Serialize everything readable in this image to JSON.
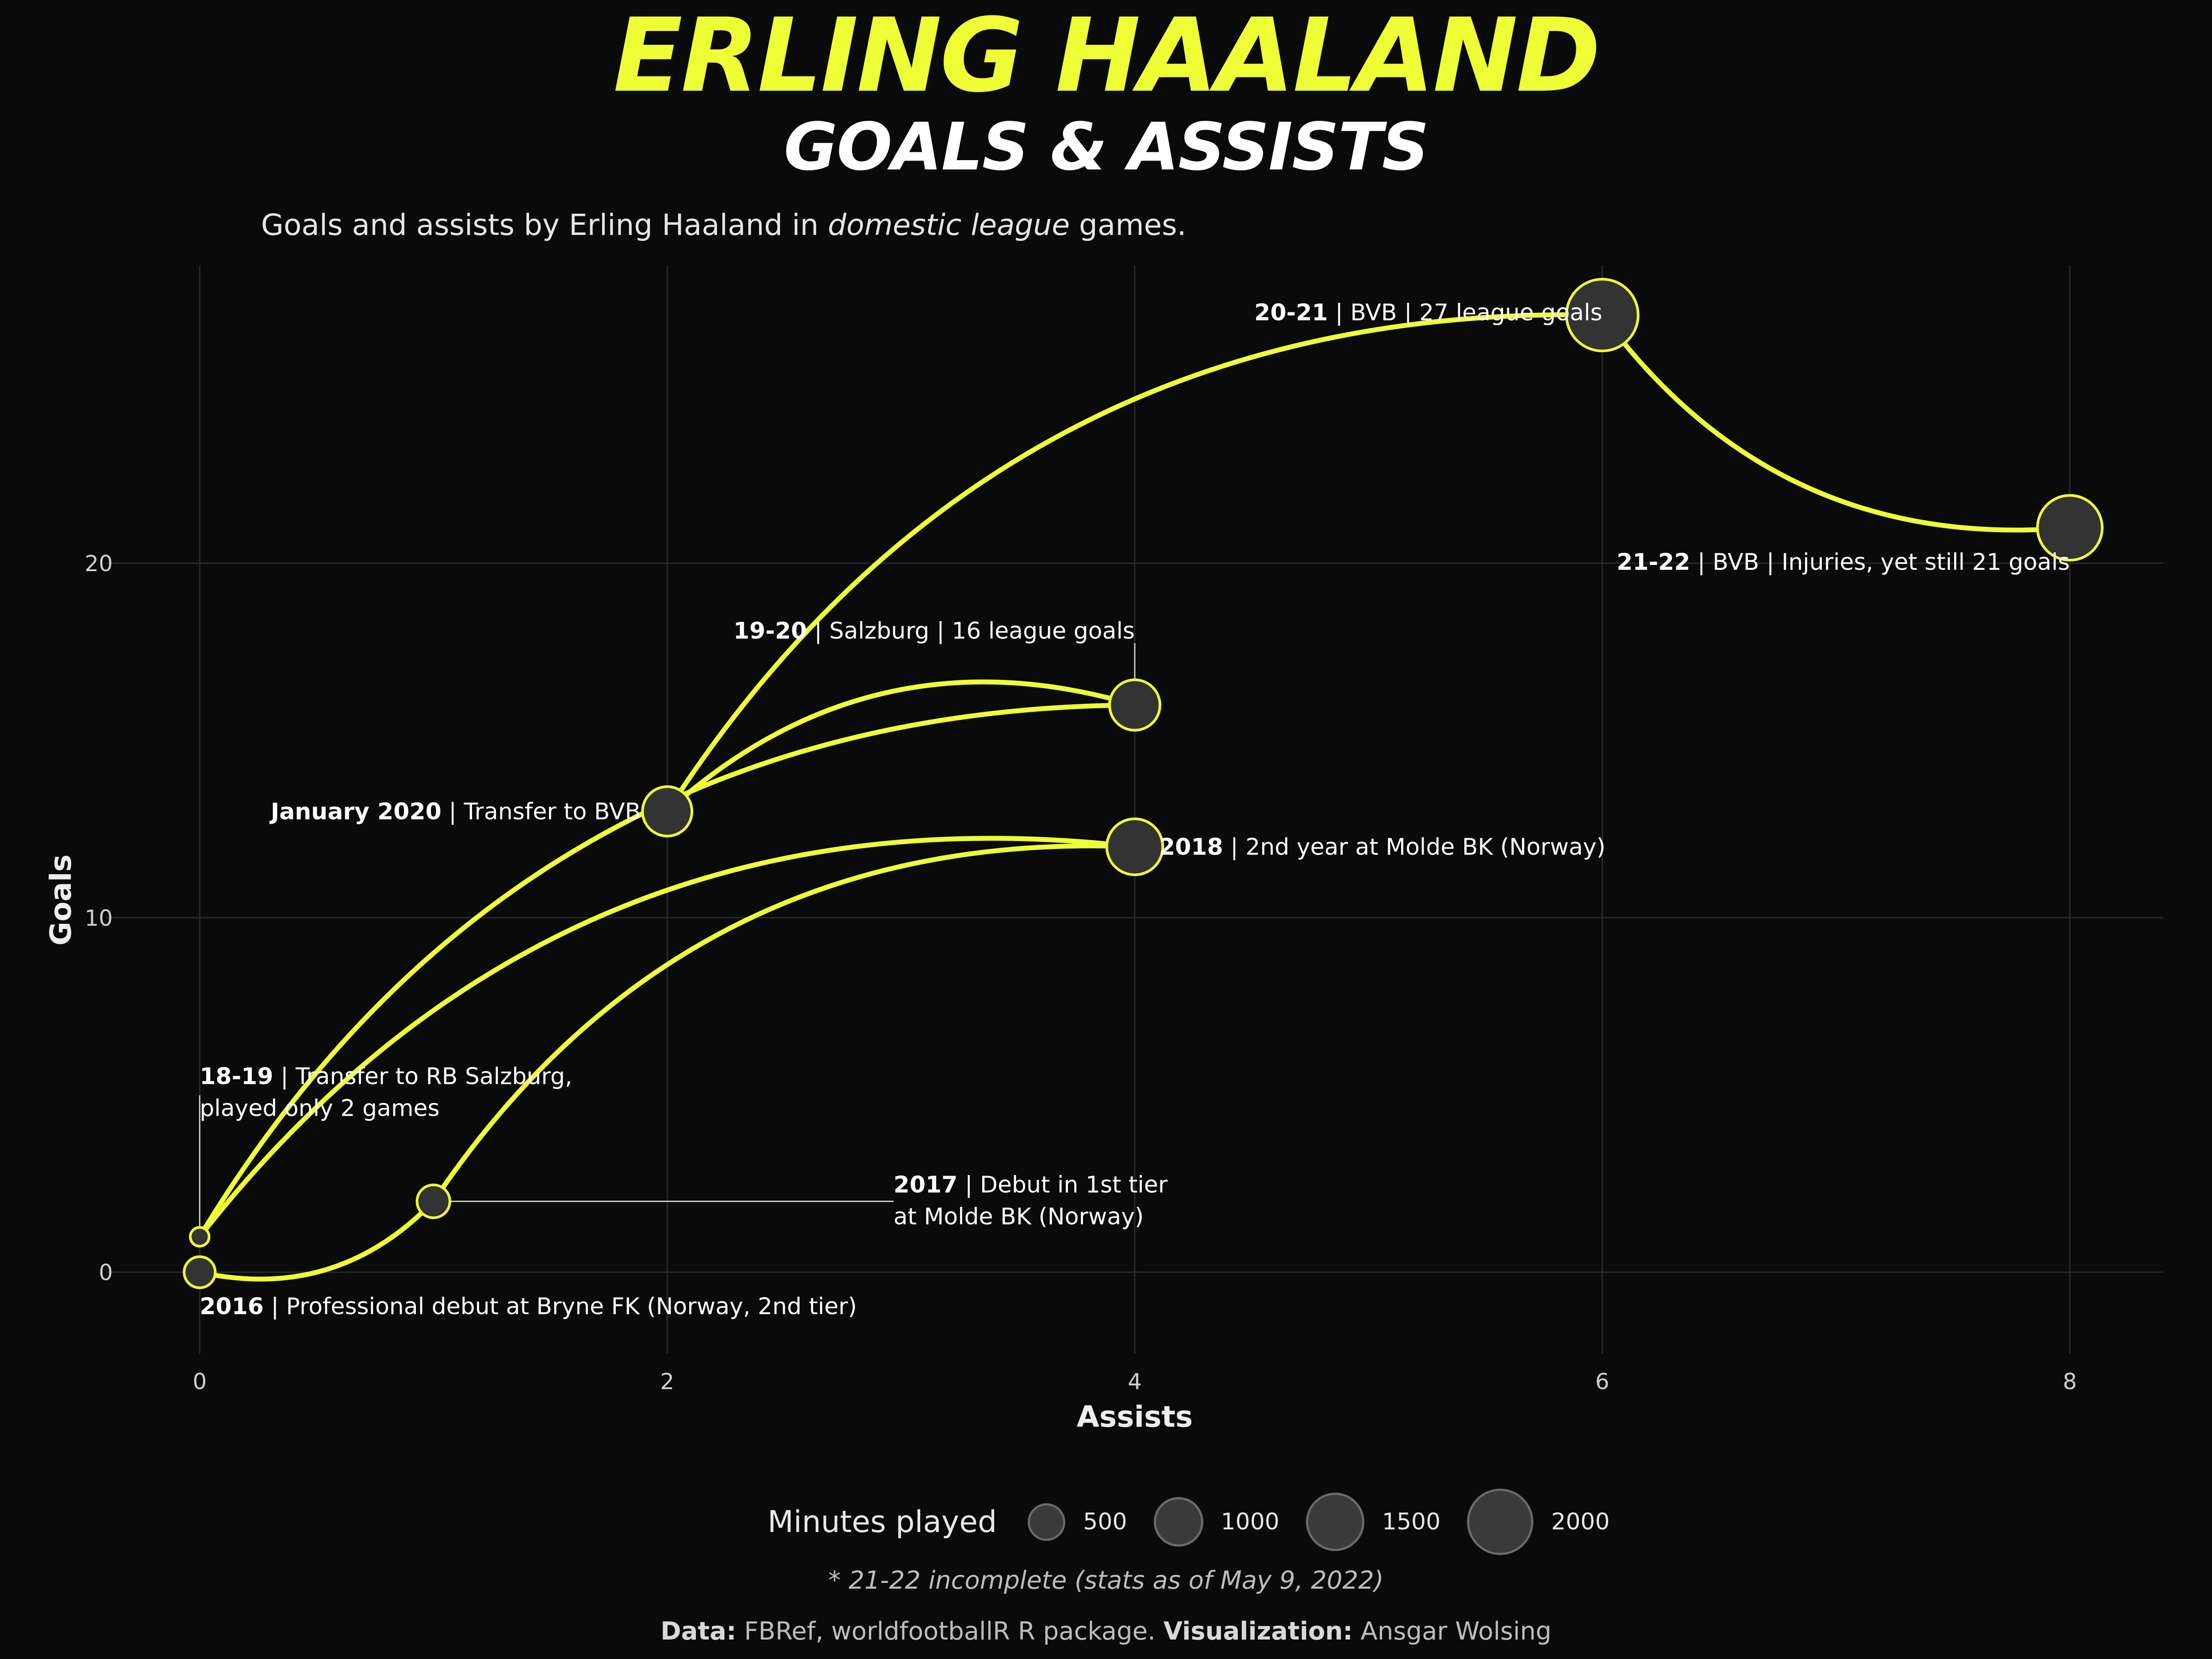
{
  "title": "ERLING HAALAND",
  "subtitle": "GOALS & ASSISTS",
  "description": {
    "prefix": "Goals and assists by Erling Haaland in ",
    "emphasis": "domestic league",
    "suffix": " games."
  },
  "colors": {
    "background": "#0a0a0a",
    "line": "#eeff36",
    "point_fill": "#333333",
    "grid": "#2a2a2a",
    "text": "#ffffff"
  },
  "chart_data": {
    "type": "line",
    "xlabel": "Assists",
    "ylabel": "Goals",
    "xlim": [
      -0.4,
      8.4
    ],
    "ylim": [
      -2.3,
      28.4
    ],
    "xticks": [
      "0",
      "2",
      "4",
      "6",
      "8"
    ],
    "yticks": [
      "0",
      "10",
      "20"
    ],
    "grid": true,
    "points": [
      {
        "id": "2016",
        "bold": "2016",
        "text": " | Professional debut at Bryne FK (Norway, 2nd tier)",
        "assists": 0,
        "goals": 0,
        "minutes": 300
      },
      {
        "id": "2017",
        "bold": "2017",
        "text": " | Debut in 1st tier",
        "text2": "at Molde BK (Norway)",
        "assists": 1,
        "goals": 2,
        "minutes": 350
      },
      {
        "id": "2018",
        "bold": "2018",
        "text": " | 2nd year at Molde BK (Norway)",
        "assists": 4,
        "goals": 12,
        "minutes": 1350
      },
      {
        "id": "18-19",
        "bold": "18-19",
        "text": " | Transfer to RB Salzburg,",
        "text2": "played only 2 games",
        "assists": 0,
        "goals": 1,
        "minutes": 60
      },
      {
        "id": "19-20a",
        "bold": "19-20",
        "text": " | Salzburg | 16 league goals",
        "assists": 4,
        "goals": 16,
        "minutes": 1050
      },
      {
        "id": "jan2020",
        "bold": "January 2020",
        "text": " | Transfer to BVB",
        "assists": 2,
        "goals": 13,
        "minutes": 1000
      },
      {
        "id": "20-21",
        "bold": "20-21",
        "text": " | BVB | 27 league goals",
        "assists": 6,
        "goals": 27,
        "minutes": 2400
      },
      {
        "id": "21-22",
        "bold": "21-22",
        "text": " | BVB | Injuries, yet still 21 goals",
        "assists": 8,
        "goals": 21,
        "minutes": 1900
      }
    ],
    "path_order": [
      "2016",
      "2017",
      "2018",
      "18-19",
      "19-20a",
      "jan2020",
      "20-21",
      "21-22"
    ]
  },
  "legend": {
    "title": "Minutes played",
    "items": [
      {
        "label": "500",
        "minutes": 500
      },
      {
        "label": "1000",
        "minutes": 1000
      },
      {
        "label": "1500",
        "minutes": 1500
      },
      {
        "label": "2000",
        "minutes": 2000
      }
    ]
  },
  "note": "* 21-22 incomplete (stats as of May 9, 2022)",
  "credits": {
    "data_label": "Data:",
    "data_text": " FBRef, worldfootballR R package. ",
    "viz_label": "Visualization:",
    "viz_text": " Ansgar Wolsing"
  }
}
